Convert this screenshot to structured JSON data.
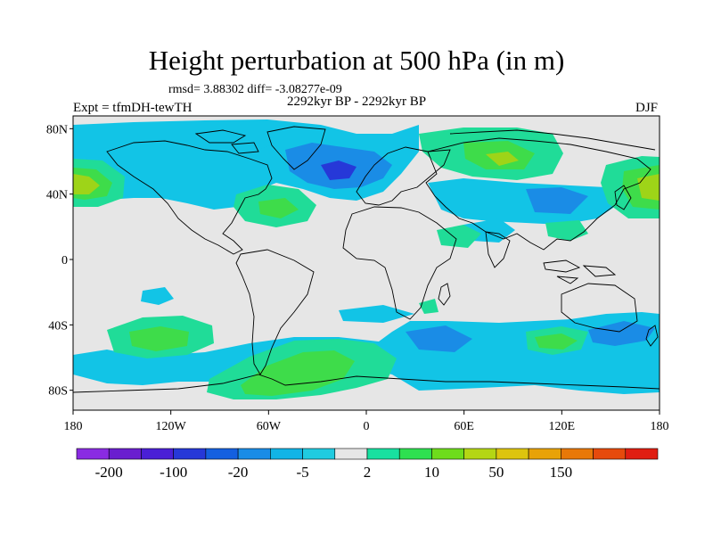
{
  "header": {
    "title": "Height perturbation at 500 hPa (in m)",
    "stats": "rmsd= 3.88302 diff= -3.08277e-09",
    "period": "2292kyr BP - 2292kyr BP",
    "experiment": "Expt = tfmDH-tewTH",
    "season": "DJF"
  },
  "axes": {
    "lat_labels": [
      "80N",
      "40N",
      "0",
      "40S",
      "80S"
    ],
    "lat_values": [
      80,
      40,
      0,
      -40,
      -80
    ],
    "lon_labels": [
      "180",
      "120W",
      "60W",
      "0",
      "60E",
      "120E",
      "180"
    ],
    "lon_values": [
      -180,
      -120,
      -60,
      0,
      60,
      120,
      180
    ]
  },
  "colorbar": {
    "labels": [
      "-200",
      "-100",
      "-20",
      "-5",
      "2",
      "10",
      "50",
      "150"
    ],
    "colors": [
      "#8a2be2",
      "#6a1ecf",
      "#4a1fd6",
      "#2638d8",
      "#1460e0",
      "#1a8ce6",
      "#12b4e6",
      "#20cbe0",
      "#e6e6e6",
      "#18e0a0",
      "#2ee050",
      "#6edc1c",
      "#b4d614",
      "#ddc40e",
      "#e8a208",
      "#e87808",
      "#e64a0c",
      "#e01e12"
    ]
  },
  "map": {
    "background": "#e6e6e6",
    "anomaly_colors": {
      "neg_weak": "#12c4e6",
      "neg_mid": "#1a8ce6",
      "neg_strong": "#2638d8",
      "pos_weak": "#20dc98",
      "pos_mid": "#3edc4a",
      "pos_strong": "#9ed418",
      "pos_max": "#d8c810"
    }
  }
}
